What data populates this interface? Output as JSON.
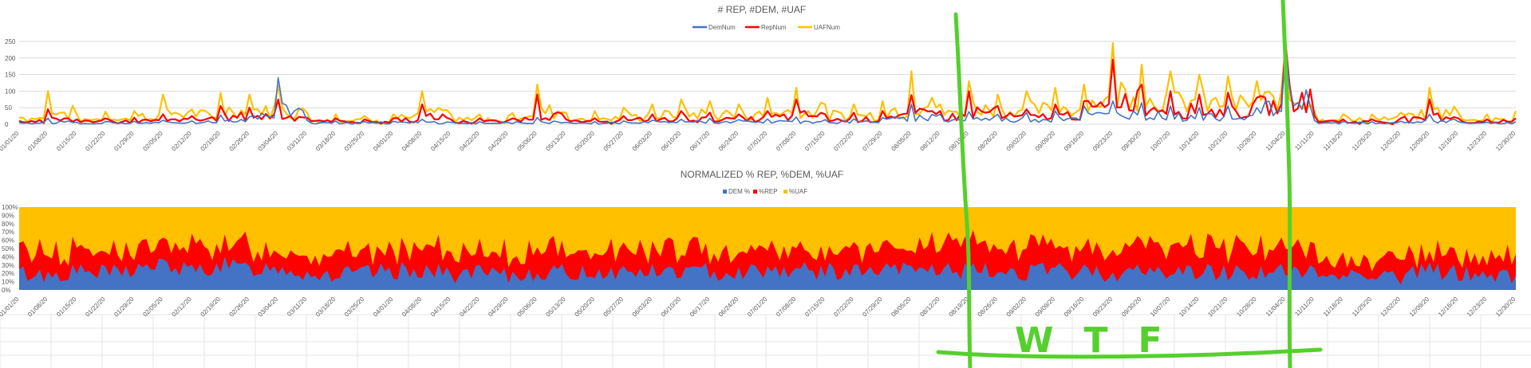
{
  "chart_data": [
    {
      "type": "line",
      "title": "# REP, #DEM, #UAF",
      "ylim": [
        0,
        250
      ],
      "yticks": [
        "250",
        "200",
        "150",
        "100",
        "50",
        "0"
      ],
      "x_tick_labels": [
        "01/01/20",
        "01/08/20",
        "01/15/20",
        "01/22/20",
        "01/29/20",
        "02/05/20",
        "02/12/20",
        "02/19/20",
        "02/26/20",
        "03/04/20",
        "03/11/20",
        "03/18/20",
        "03/25/20",
        "04/01/20",
        "04/08/20",
        "04/15/20",
        "04/22/20",
        "04/29/20",
        "05/06/20",
        "05/13/20",
        "05/20/20",
        "05/27/20",
        "06/03/20",
        "06/10/20",
        "06/17/20",
        "06/24/20",
        "07/01/20",
        "07/08/20",
        "07/15/20",
        "07/22/20",
        "07/29/20",
        "08/05/20",
        "08/12/20",
        "08/19/20",
        "08/26/20",
        "09/02/20",
        "09/09/20",
        "09/16/20",
        "09/23/20",
        "09/30/20",
        "10/07/20",
        "10/14/20",
        "10/21/20",
        "10/28/20",
        "11/04/20",
        "11/11/20",
        "11/18/20",
        "11/25/20",
        "12/02/20",
        "12/09/20",
        "12/16/20",
        "12/23/20",
        "12/30/20"
      ],
      "legend_position": "top",
      "grid": true,
      "series": [
        {
          "name": "DemNum",
          "color": "#4472c4"
        },
        {
          "name": "RepNum",
          "color": "#ff0000"
        },
        {
          "name": "UAFNum",
          "color": "#ffc000"
        }
      ],
      "weekly_values": {
        "DemNum": [
          5,
          18,
          6,
          8,
          9,
          12,
          10,
          28,
          22,
          140,
          12,
          10,
          8,
          9,
          15,
          6,
          8,
          5,
          20,
          6,
          8,
          10,
          12,
          15,
          18,
          14,
          16,
          22,
          14,
          16,
          20,
          60,
          30,
          38,
          30,
          35,
          40,
          55,
          70,
          65,
          55,
          50,
          55,
          50,
          240,
          12,
          8,
          8,
          9,
          30,
          8,
          6,
          8
        ],
        "RepNum": [
          10,
          45,
          15,
          18,
          20,
          30,
          25,
          55,
          50,
          75,
          20,
          18,
          15,
          18,
          60,
          15,
          18,
          12,
          90,
          15,
          18,
          25,
          30,
          40,
          35,
          30,
          40,
          75,
          30,
          35,
          40,
          88,
          40,
          100,
          55,
          45,
          60,
          70,
          195,
          120,
          100,
          90,
          95,
          80,
          245,
          25,
          15,
          15,
          18,
          75,
          18,
          15,
          18
        ],
        "UAFNum": [
          20,
          100,
          30,
          38,
          40,
          90,
          45,
          95,
          90,
          115,
          35,
          30,
          25,
          30,
          100,
          30,
          30,
          25,
          120,
          35,
          40,
          50,
          60,
          75,
          70,
          60,
          80,
          110,
          60,
          60,
          70,
          160,
          60,
          130,
          90,
          100,
          110,
          120,
          245,
          180,
          160,
          150,
          145,
          130,
          245,
          40,
          30,
          30,
          35,
          110,
          35,
          30,
          40
        ]
      }
    },
    {
      "type": "area",
      "stacked": "percent",
      "title": "NORMALIZED % REP, %DEM, %UAF",
      "ylim": [
        0,
        100
      ],
      "yticks": [
        "100%",
        "90%",
        "80%",
        "70%",
        "60%",
        "50%",
        "40%",
        "30%",
        "20%",
        "10%",
        "0%"
      ],
      "x_tick_labels": [
        "01/01/20",
        "01/08/20",
        "01/15/20",
        "01/22/20",
        "01/29/20",
        "02/05/20",
        "02/12/20",
        "02/19/20",
        "02/26/20",
        "03/04/20",
        "03/11/20",
        "03/18/20",
        "03/25/20",
        "04/01/20",
        "04/08/20",
        "04/15/20",
        "04/22/20",
        "04/29/20",
        "05/06/20",
        "05/13/20",
        "05/20/20",
        "05/27/20",
        "06/03/20",
        "06/10/20",
        "06/17/20",
        "06/24/20",
        "07/01/20",
        "07/08/20",
        "07/15/20",
        "07/22/20",
        "07/29/20",
        "08/05/20",
        "08/12/20",
        "08/19/20",
        "08/26/20",
        "09/02/20",
        "09/09/20",
        "09/16/20",
        "09/23/20",
        "09/30/20",
        "10/07/20",
        "10/14/20",
        "10/21/20",
        "10/28/20",
        "11/04/20",
        "11/11/20",
        "11/18/20",
        "11/25/20",
        "12/02/20",
        "12/09/20",
        "12/16/20",
        "12/23/20",
        "12/30/20"
      ],
      "legend_position": "top",
      "series": [
        {
          "name": "DEM %",
          "color": "#4472c4"
        },
        {
          "name": "%REP",
          "color": "#ff0000"
        },
        {
          "name": "%UAF",
          "color": "#ffc000"
        }
      ],
      "weekly_percent": {
        "DEM %": [
          20,
          18,
          22,
          20,
          25,
          30,
          22,
          30,
          25,
          28,
          20,
          18,
          20,
          22,
          25,
          18,
          20,
          15,
          22,
          20,
          22,
          22,
          22,
          22,
          22,
          22,
          25,
          24,
          22,
          22,
          22,
          25,
          25,
          22,
          22,
          22,
          22,
          22,
          20,
          22,
          22,
          22,
          22,
          22,
          22,
          20,
          18,
          22,
          15,
          25,
          20,
          18,
          15
        ],
        "%REP": [
          30,
          28,
          25,
          28,
          25,
          22,
          28,
          25,
          28,
          22,
          25,
          28,
          25,
          25,
          28,
          25,
          25,
          25,
          30,
          25,
          25,
          25,
          25,
          25,
          25,
          25,
          28,
          25,
          25,
          25,
          25,
          25,
          30,
          30,
          30,
          30,
          28,
          30,
          30,
          30,
          30,
          30,
          30,
          30,
          30,
          20,
          18,
          18,
          20,
          20,
          18,
          18,
          22
        ],
        "%UAF": [
          50,
          54,
          53,
          52,
          50,
          48,
          50,
          45,
          47,
          50,
          55,
          54,
          55,
          53,
          47,
          57,
          55,
          60,
          48,
          55,
          53,
          53,
          53,
          53,
          53,
          53,
          47,
          51,
          53,
          53,
          53,
          50,
          45,
          48,
          48,
          48,
          50,
          48,
          50,
          48,
          48,
          48,
          48,
          48,
          48,
          60,
          64,
          60,
          65,
          55,
          62,
          64,
          63
        ]
      }
    }
  ],
  "annotation": {
    "text": "WTF",
    "color": "#55d02c"
  }
}
